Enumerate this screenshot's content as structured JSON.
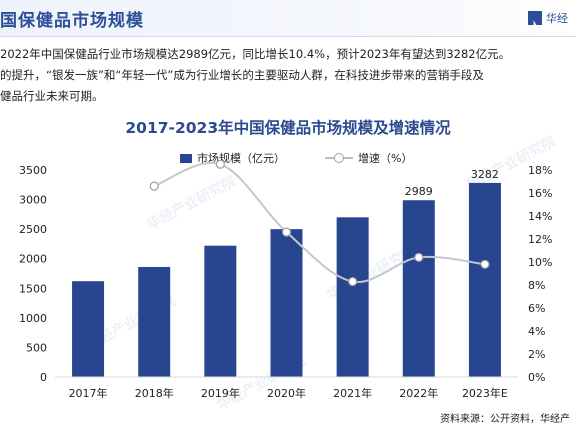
{
  "header": {
    "title": "国保健品市场规模",
    "brand": "华经"
  },
  "paragraph": {
    "line1": "2022年中国保健品行业市场规模达2989亿元，同比增长10.4%，预计2023年有望达到3282亿元。",
    "line2": "的提升，“银发一族”和“年轻一代”成为行业增长的主要驱动人群，在科技进步带来的营销手段及",
    "line3": "健品行业未来可期。"
  },
  "watermark": "华经产业研究院",
  "source": "资料来源：公开资料，华经产",
  "colors": {
    "bar": "#28468f",
    "line": "#c4c8ce",
    "marker_fill": "#ffffff",
    "marker_stroke": "#9aa0aa",
    "title": "#2b4a8f"
  },
  "chart_data": {
    "type": "bar",
    "title": "2017-2023年中国保健品市场规模及增速情况",
    "categories": [
      "2017年",
      "2018年",
      "2019年",
      "2020年",
      "2021年",
      "2022年",
      "2023年E"
    ],
    "series": [
      {
        "name": "市场规模（亿元）",
        "type": "bar",
        "axis": "left",
        "values": [
          1620,
          1860,
          2220,
          2500,
          2700,
          2989,
          3282
        ],
        "data_labels": [
          null,
          null,
          null,
          null,
          null,
          "2989",
          "3282"
        ]
      },
      {
        "name": "增速（%）",
        "type": "line",
        "axis": "right",
        "smooth": true,
        "values": [
          null,
          16.6,
          18.5,
          12.6,
          8.3,
          10.4,
          9.8
        ]
      }
    ],
    "y_left": {
      "min": 0,
      "max": 3500,
      "step": 500,
      "ticks": [
        "0",
        "500",
        "1000",
        "1500",
        "2000",
        "2500",
        "3000",
        "3500"
      ]
    },
    "y_right": {
      "min": 0,
      "max": 18,
      "step": 2,
      "ticks": [
        "0%",
        "2%",
        "4%",
        "6%",
        "8%",
        "10%",
        "12%",
        "14%",
        "16%",
        "18%"
      ]
    },
    "legend": "top",
    "grid": false
  }
}
